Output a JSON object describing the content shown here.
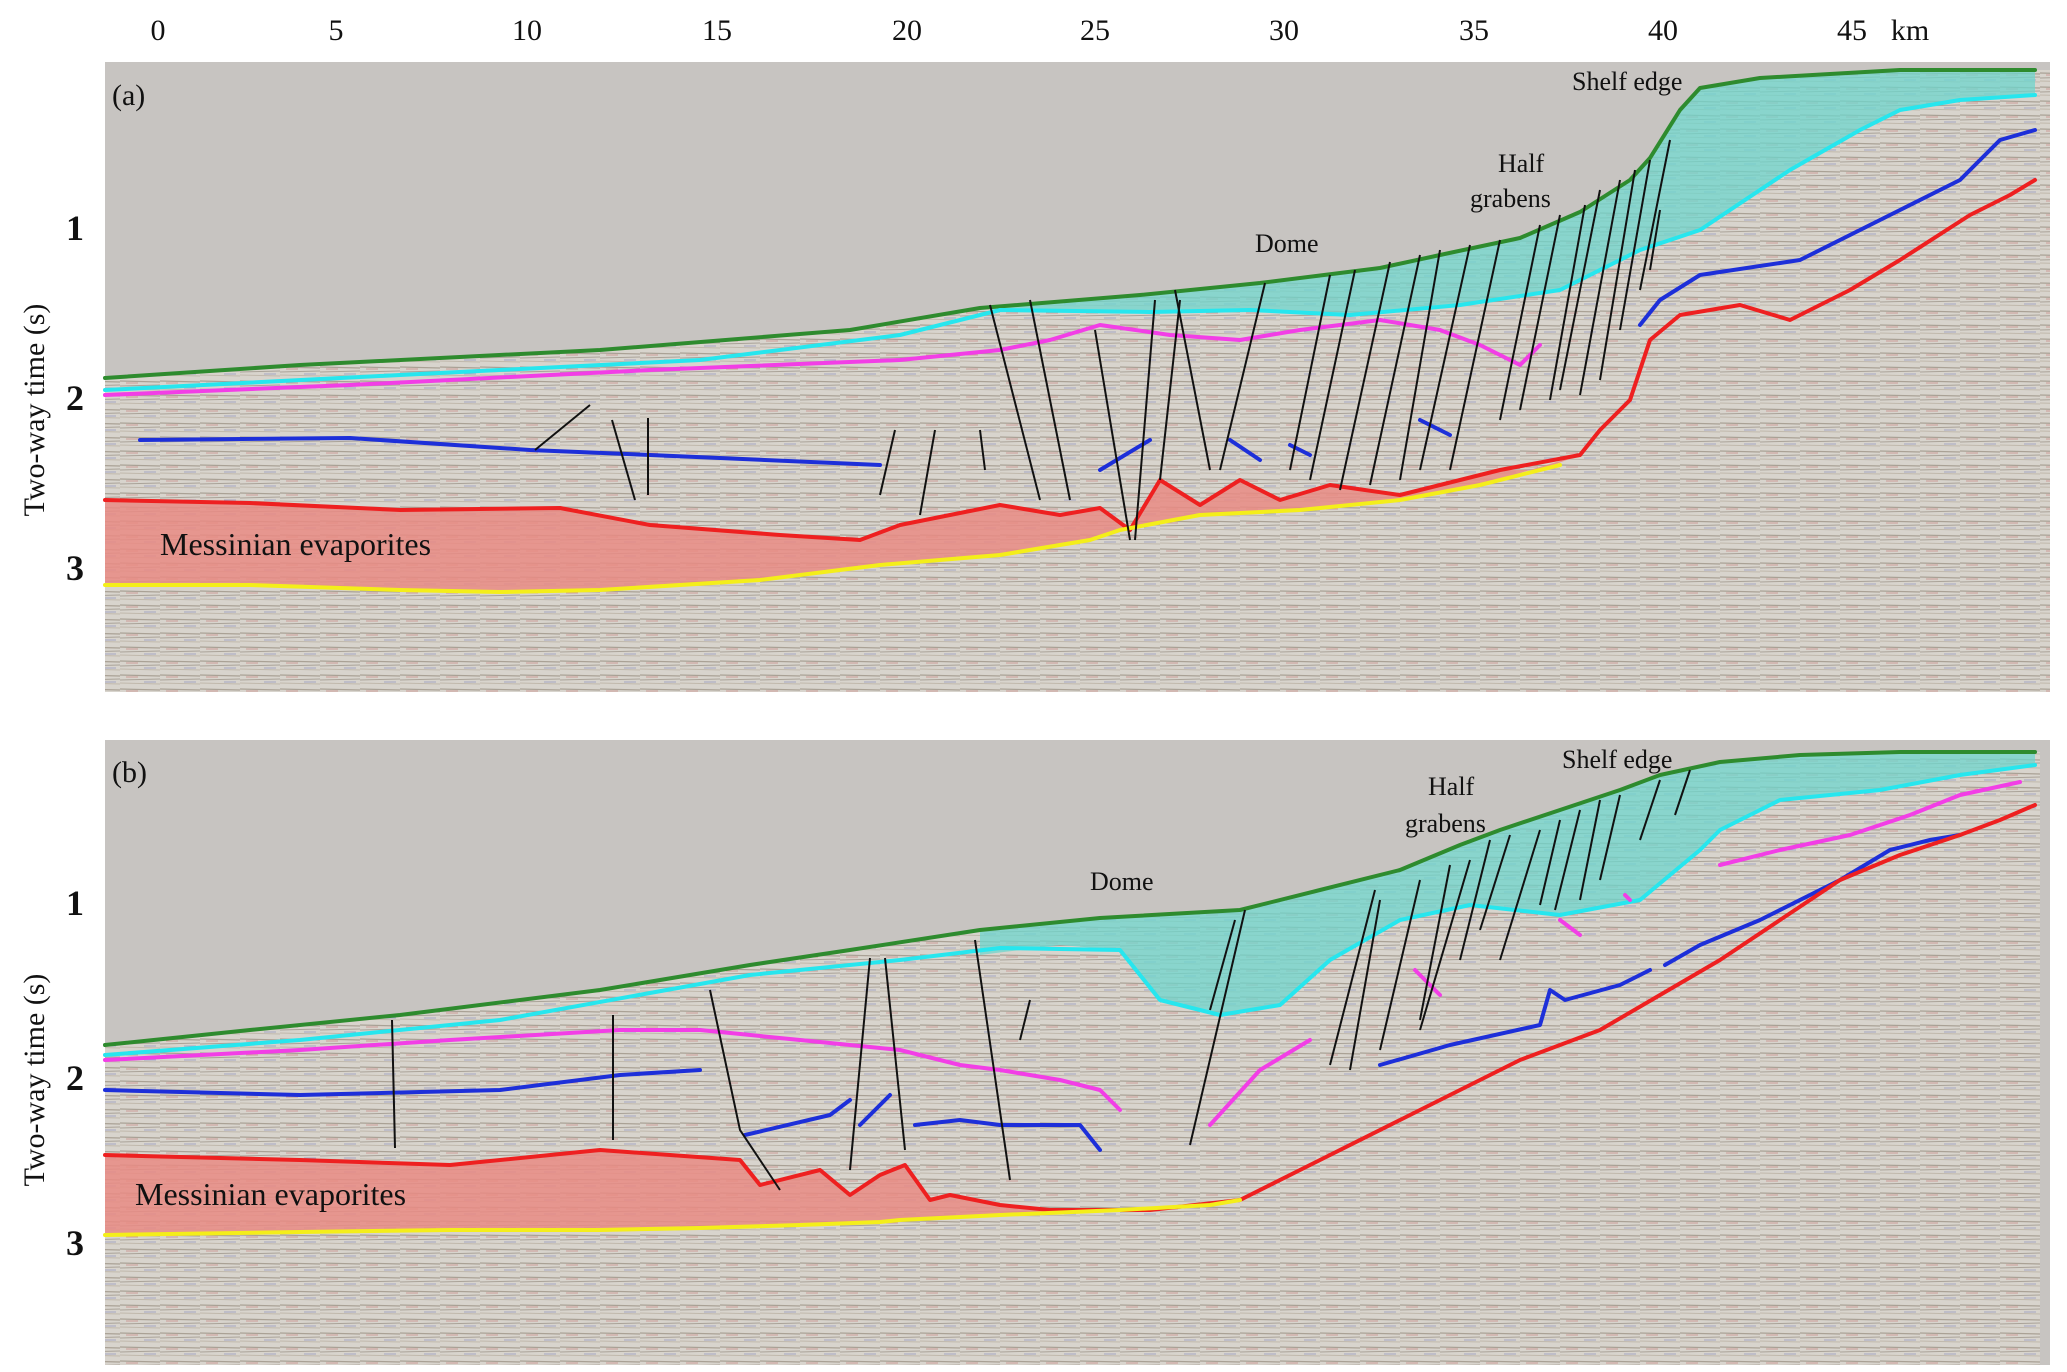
{
  "figure": {
    "km_axis": {
      "ticks": [
        "0",
        "5",
        "10",
        "15",
        "20",
        "25",
        "30",
        "35",
        "40",
        "45"
      ],
      "unit": "km"
    },
    "time_axis": {
      "label": "Two-way time (s)",
      "ticks": [
        "1",
        "2",
        "3"
      ]
    },
    "panel_a": {
      "tag": "(a)",
      "labels": {
        "evaporites": "Messinian evaporites",
        "dome": "Dome",
        "half_grabens_1": "Half",
        "half_grabens_2": "grabens",
        "shelf_edge": "Shelf edge"
      }
    },
    "panel_b": {
      "tag": "(b)",
      "labels": {
        "evaporites": "Messinian evaporites",
        "dome": "Dome",
        "half_grabens_1": "Half",
        "half_grabens_2": "grabens",
        "shelf_edge": "Shelf edge"
      }
    },
    "colors": {
      "seafloor": "#2e8b2e",
      "water": "#c8c5c2",
      "seismic_bg": "#d9d6d0",
      "plio_quaternary_fill": "#6fd6cc",
      "evaporite_fill": "#e98b84",
      "cyan_horizon": "#27e6ee",
      "magenta_horizon": "#f23ee6",
      "blue_horizon": "#1d2fd9",
      "top_evaporite": "#ee2020",
      "base_evaporite": "#f4ee1a",
      "fault": "#111111"
    }
  }
}
